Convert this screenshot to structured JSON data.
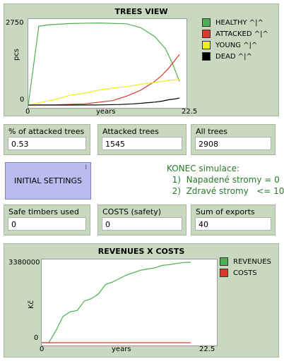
{
  "trees_view": {
    "title": "TREES VIEW",
    "y_label": "pcs",
    "x_label": "years",
    "y_max_label": "2750",
    "y_min_label": "0",
    "x_min_label": "0",
    "x_max_label": "22.5",
    "legend": [
      {
        "label": "HEALTHY ^|^",
        "color": "#4caf50"
      },
      {
        "label": "ATTACKED ^|^",
        "color": "#d93a2b"
      },
      {
        "label": "YOUNG ^|^",
        "color": "#eeee22"
      },
      {
        "label": "DEAD ^|^",
        "color": "#000000"
      }
    ]
  },
  "monitors_row1": [
    {
      "label": "% of attacked trees",
      "value": "0.53"
    },
    {
      "label": "Attacked trees",
      "value": "1545"
    },
    {
      "label": "All trees",
      "value": "2908"
    }
  ],
  "initial_settings_button": {
    "label": "INITIAL SETTINGS",
    "corner": "I"
  },
  "end_note": {
    "title": "KONEC simulace:",
    "line1": "1)  Napadené stromy = 0",
    "line2": "2)  Zdravé stromy   <= 10"
  },
  "monitors_row2": [
    {
      "label": "Safe timbers used",
      "value": "0"
    },
    {
      "label": "COSTS (safety)",
      "value": "0"
    },
    {
      "label": "Sum of exports",
      "value": "40"
    }
  ],
  "revenues_view": {
    "title": "REVENUES X COSTS",
    "y_label": "Kč",
    "x_label": "years",
    "y_max_label": "3380000",
    "y_min_label": "0",
    "x_min_label": "0",
    "x_max_label": "22.5",
    "legend": [
      {
        "label": "REVENUES",
        "color": "#4caf50"
      },
      {
        "label": "COSTS",
        "color": "#d93a2b"
      }
    ]
  },
  "chart_data": [
    {
      "type": "line",
      "title": "TREES VIEW",
      "xlabel": "years",
      "ylabel": "pcs",
      "xlim": [
        0,
        22.5
      ],
      "ylim": [
        0,
        2750
      ],
      "series": [
        {
          "name": "HEALTHY ^|^",
          "color": "#4caf50",
          "x": [
            0,
            1.5,
            3,
            6,
            10,
            14,
            16,
            18,
            19.5,
            20.5,
            21.5
          ],
          "y": [
            0,
            2650,
            2700,
            2740,
            2760,
            2730,
            2600,
            2300,
            1900,
            1400,
            800
          ]
        },
        {
          "name": "ATTACKED ^|^",
          "color": "#d93a2b",
          "x": [
            0,
            4,
            8,
            12,
            14,
            16,
            18,
            19,
            20,
            21,
            21.5
          ],
          "y": [
            0,
            10,
            40,
            150,
            300,
            500,
            800,
            1000,
            1250,
            1550,
            1700
          ]
        },
        {
          "name": "YOUNG ^|^",
          "color": "#eeee22",
          "x": [
            0,
            2,
            4,
            6,
            8,
            10,
            12,
            14,
            16,
            18,
            20,
            21.5
          ],
          "y": [
            0,
            100,
            200,
            330,
            400,
            500,
            570,
            620,
            700,
            760,
            830,
            860
          ]
        },
        {
          "name": "DEAD ^|^",
          "color": "#000000",
          "x": [
            0,
            6,
            10,
            13,
            15,
            17,
            18,
            19,
            20,
            21,
            21.5
          ],
          "y": [
            0,
            0,
            5,
            20,
            40,
            80,
            100,
            130,
            180,
            210,
            240
          ]
        }
      ]
    },
    {
      "type": "line",
      "title": "REVENUES X COSTS",
      "xlabel": "years",
      "ylabel": "Kč",
      "xlim": [
        0,
        22.5
      ],
      "ylim": [
        0,
        3380000
      ],
      "series": [
        {
          "name": "REVENUES",
          "color": "#4caf50",
          "x": [
            0,
            1,
            2,
            3,
            4,
            5,
            6,
            7,
            8,
            9,
            10,
            11,
            12,
            13,
            14,
            15,
            16,
            17,
            18,
            19,
            20,
            21
          ],
          "y": [
            0,
            0,
            500000,
            1100000,
            1300000,
            1350000,
            1750000,
            1850000,
            2050000,
            2450000,
            2550000,
            2700000,
            2850000,
            2950000,
            3050000,
            3100000,
            3150000,
            3250000,
            3280000,
            3330000,
            3370000,
            3380000
          ]
        },
        {
          "name": "COSTS",
          "color": "#d93a2b",
          "x": [
            0,
            21
          ],
          "y": [
            0,
            0
          ]
        }
      ]
    }
  ]
}
